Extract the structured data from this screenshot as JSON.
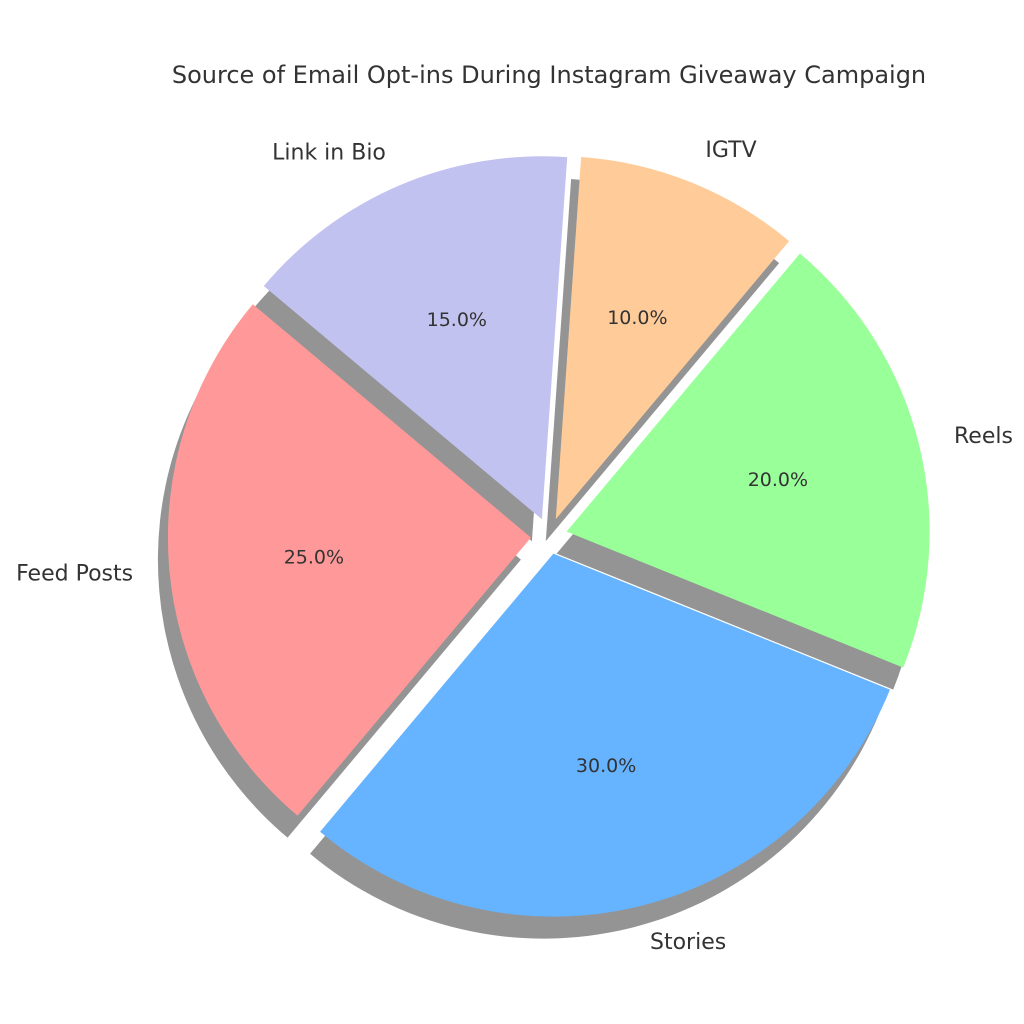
{
  "chart_data": {
    "type": "pie",
    "title": "Source of Email Opt-ins During Instagram Giveaway Campaign",
    "categories": [
      "Feed Posts",
      "Stories",
      "Reels",
      "IGTV",
      "Link in Bio"
    ],
    "values": [
      25.0,
      30.0,
      20.0,
      10.0,
      15.0
    ],
    "percent_labels": [
      "25.0%",
      "30.0%",
      "20.0%",
      "10.0%",
      "15.0%"
    ],
    "colors": [
      "#ff9999",
      "#66b3ff",
      "#99ff99",
      "#ffcc99",
      "#c2c2f0"
    ],
    "start_angle_deg": 140,
    "exploded": true,
    "shadow": true,
    "legend": "none"
  }
}
